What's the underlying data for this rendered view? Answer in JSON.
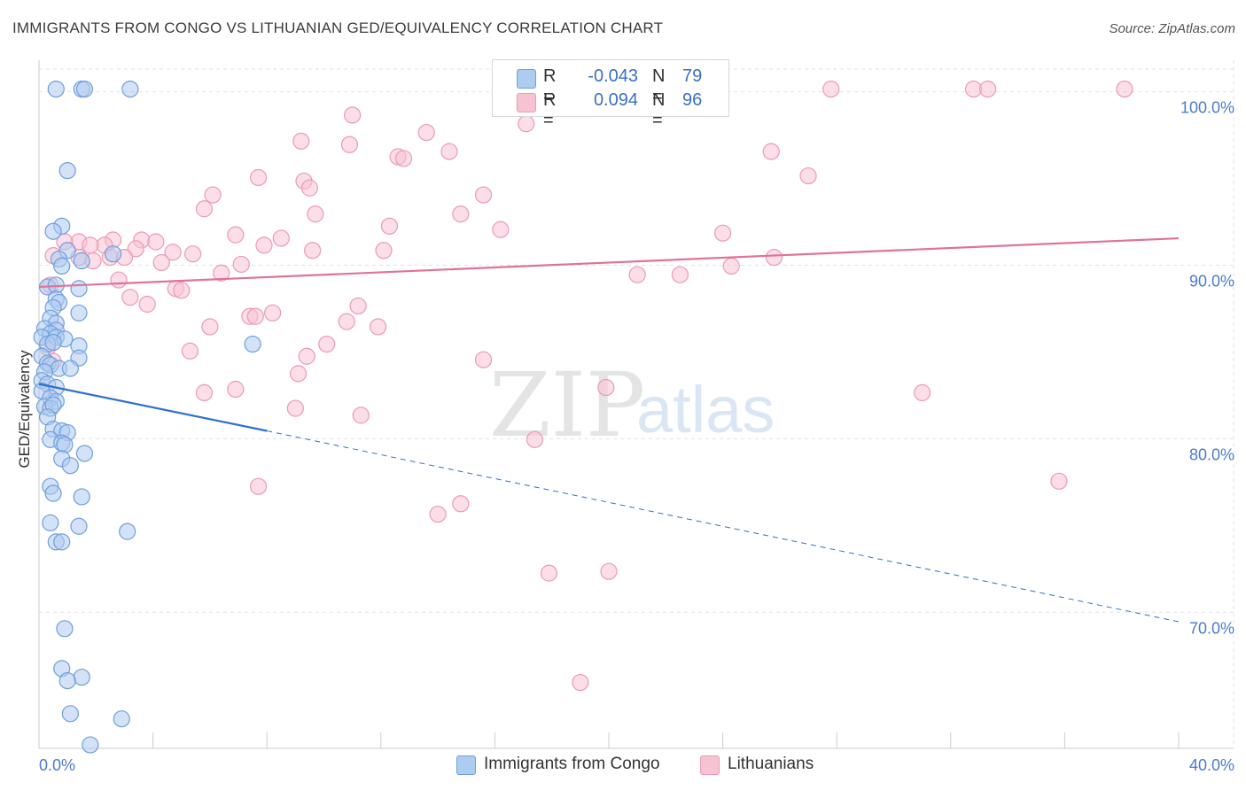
{
  "header": {
    "title": "IMMIGRANTS FROM CONGO VS LITHUANIAN GED/EQUIVALENCY CORRELATION CHART",
    "source": "Source: ZipAtlas.com"
  },
  "watermark": {
    "zip": "ZIP",
    "atlas": "atlas"
  },
  "legend": {
    "rows": [
      {
        "r_label": "R =",
        "r_value": "-0.043",
        "n_label": "N =",
        "n_value": "79"
      },
      {
        "r_label": "R =",
        "r_value": "0.094",
        "n_label": "N =",
        "n_value": "96"
      }
    ]
  },
  "bottom_legend": {
    "series1": "Immigrants from Congo",
    "series2": "Lithuanians"
  },
  "colors": {
    "blue_fill": "#aecbf0",
    "blue_stroke": "#6f9fdc",
    "blue_line": "#2f6fd0",
    "pink_fill": "#f7c3d3",
    "pink_stroke": "#ec9ab4",
    "pink_line": "#e07298",
    "grid": "#e2e2e2",
    "tick_label": "#4a7cc9"
  },
  "chart_data": {
    "type": "scatter",
    "title": "IMMIGRANTS FROM CONGO VS LITHUANIAN GED/EQUIVALENCY CORRELATION CHART",
    "xlabel": "",
    "ylabel": "GED/Equivalency",
    "xlim": [
      0,
      40
    ],
    "ylim": [
      62,
      101
    ],
    "x_tick_labels": [
      "0.0%",
      "40.0%"
    ],
    "y_ticks": [
      70,
      80,
      90,
      100
    ],
    "y_tick_labels": [
      "70.0%",
      "80.0%",
      "90.0%",
      "100.0%"
    ],
    "grid": true,
    "legend_position": "top-center",
    "series": [
      {
        "name": "Immigrants from Congo",
        "r": -0.043,
        "n": 79,
        "trend": {
          "x0": 0,
          "y0": 83.0,
          "x1": 8.0,
          "y1": 80.3,
          "dashed_to_x": 40,
          "dashed_to_y": 69.3
        },
        "points": [
          [
            0.6,
            100
          ],
          [
            1.5,
            100
          ],
          [
            1.6,
            100
          ],
          [
            3.2,
            100
          ],
          [
            1.0,
            95.3
          ],
          [
            0.8,
            92.1
          ],
          [
            0.5,
            91.8
          ],
          [
            1.0,
            90.7
          ],
          [
            0.7,
            90.2
          ],
          [
            1.5,
            90.1
          ],
          [
            2.6,
            90.5
          ],
          [
            0.8,
            89.8
          ],
          [
            0.3,
            88.6
          ],
          [
            0.6,
            88.7
          ],
          [
            1.4,
            88.5
          ],
          [
            0.6,
            87.9
          ],
          [
            0.7,
            87.7
          ],
          [
            0.5,
            87.4
          ],
          [
            1.4,
            87.1
          ],
          [
            0.4,
            86.8
          ],
          [
            0.6,
            86.5
          ],
          [
            0.2,
            86.2
          ],
          [
            0.6,
            86.1
          ],
          [
            0.4,
            85.9
          ],
          [
            0.1,
            85.7
          ],
          [
            0.6,
            85.7
          ],
          [
            0.9,
            85.6
          ],
          [
            0.3,
            85.3
          ],
          [
            0.5,
            85.4
          ],
          [
            1.4,
            85.2
          ],
          [
            7.5,
            85.3
          ],
          [
            0.1,
            84.6
          ],
          [
            1.4,
            84.5
          ],
          [
            0.3,
            84.2
          ],
          [
            0.4,
            84.1
          ],
          [
            0.7,
            83.9
          ],
          [
            1.1,
            83.9
          ],
          [
            0.2,
            83.7
          ],
          [
            0.1,
            83.2
          ],
          [
            0.3,
            83.0
          ],
          [
            0.6,
            82.8
          ],
          [
            0.1,
            82.6
          ],
          [
            0.4,
            82.2
          ],
          [
            0.6,
            82.0
          ],
          [
            0.2,
            81.7
          ],
          [
            0.4,
            81.6
          ],
          [
            0.5,
            81.8
          ],
          [
            0.3,
            81.1
          ],
          [
            0.5,
            80.4
          ],
          [
            0.8,
            80.3
          ],
          [
            1.0,
            80.2
          ],
          [
            0.4,
            79.8
          ],
          [
            0.8,
            79.6
          ],
          [
            0.9,
            79.5
          ],
          [
            1.6,
            79.0
          ],
          [
            0.8,
            78.7
          ],
          [
            1.1,
            78.3
          ],
          [
            0.4,
            77.1
          ],
          [
            0.5,
            76.7
          ],
          [
            1.5,
            76.5
          ],
          [
            0.4,
            75.0
          ],
          [
            1.4,
            74.8
          ],
          [
            3.1,
            74.5
          ],
          [
            0.6,
            73.9
          ],
          [
            0.8,
            73.9
          ],
          [
            0.9,
            68.9
          ],
          [
            0.8,
            66.6
          ],
          [
            1.5,
            66.1
          ],
          [
            1.0,
            65.9
          ],
          [
            1.1,
            64.0
          ],
          [
            2.9,
            63.7
          ],
          [
            1.8,
            62.2
          ]
        ]
      },
      {
        "name": "Lithuanians",
        "r": 0.094,
        "n": 96,
        "trend": {
          "x0": 0,
          "y0": 88.6,
          "x1": 40,
          "y1": 91.4
        },
        "points": [
          [
            17.5,
            100
          ],
          [
            23.7,
            100
          ],
          [
            27.8,
            100
          ],
          [
            32.8,
            100
          ],
          [
            33.3,
            100
          ],
          [
            38.1,
            100
          ],
          [
            11.0,
            98.5
          ],
          [
            17.1,
            98.0
          ],
          [
            13.6,
            97.5
          ],
          [
            9.2,
            97.0
          ],
          [
            10.9,
            96.8
          ],
          [
            14.4,
            96.4
          ],
          [
            25.7,
            96.4
          ],
          [
            12.6,
            96.1
          ],
          [
            12.8,
            96.0
          ],
          [
            7.7,
            94.9
          ],
          [
            9.3,
            94.7
          ],
          [
            9.5,
            94.3
          ],
          [
            27.0,
            95.0
          ],
          [
            6.1,
            93.9
          ],
          [
            15.6,
            93.9
          ],
          [
            5.8,
            93.1
          ],
          [
            9.7,
            92.8
          ],
          [
            14.8,
            92.8
          ],
          [
            12.3,
            92.1
          ],
          [
            16.2,
            91.9
          ],
          [
            24.0,
            91.7
          ],
          [
            6.9,
            91.6
          ],
          [
            8.5,
            91.4
          ],
          [
            3.6,
            91.3
          ],
          [
            2.6,
            91.3
          ],
          [
            1.4,
            91.2
          ],
          [
            0.9,
            91.2
          ],
          [
            4.1,
            91.2
          ],
          [
            7.9,
            91.0
          ],
          [
            2.3,
            91.0
          ],
          [
            1.8,
            91.0
          ],
          [
            3.4,
            90.8
          ],
          [
            9.6,
            90.7
          ],
          [
            12.1,
            90.7
          ],
          [
            4.7,
            90.6
          ],
          [
            5.4,
            90.5
          ],
          [
            0.5,
            90.4
          ],
          [
            1.4,
            90.3
          ],
          [
            2.5,
            90.3
          ],
          [
            3.0,
            90.3
          ],
          [
            25.8,
            90.3
          ],
          [
            1.9,
            90.1
          ],
          [
            4.3,
            90.0
          ],
          [
            7.1,
            89.9
          ],
          [
            24.3,
            89.8
          ],
          [
            6.4,
            89.4
          ],
          [
            21.0,
            89.3
          ],
          [
            22.5,
            89.3
          ],
          [
            2.8,
            89.0
          ],
          [
            0.4,
            88.7
          ],
          [
            4.8,
            88.5
          ],
          [
            5.0,
            88.4
          ],
          [
            3.2,
            88.0
          ],
          [
            3.8,
            87.6
          ],
          [
            11.2,
            87.5
          ],
          [
            8.2,
            87.1
          ],
          [
            7.4,
            86.9
          ],
          [
            7.6,
            86.9
          ],
          [
            10.8,
            86.6
          ],
          [
            11.9,
            86.3
          ],
          [
            6.0,
            86.3
          ],
          [
            0.3,
            85.1
          ],
          [
            10.1,
            85.3
          ],
          [
            5.3,
            84.9
          ],
          [
            9.4,
            84.6
          ],
          [
            15.6,
            84.4
          ],
          [
            0.5,
            84.3
          ],
          [
            9.1,
            83.6
          ],
          [
            6.9,
            82.7
          ],
          [
            5.8,
            82.5
          ],
          [
            19.9,
            82.8
          ],
          [
            31.0,
            82.5
          ],
          [
            9.0,
            81.6
          ],
          [
            11.3,
            81.2
          ],
          [
            17.4,
            79.8
          ],
          [
            7.7,
            77.1
          ],
          [
            35.8,
            77.4
          ],
          [
            14.0,
            75.5
          ],
          [
            14.8,
            76.1
          ],
          [
            17.9,
            72.1
          ],
          [
            20.0,
            72.2
          ],
          [
            19.0,
            65.8
          ]
        ]
      }
    ]
  }
}
